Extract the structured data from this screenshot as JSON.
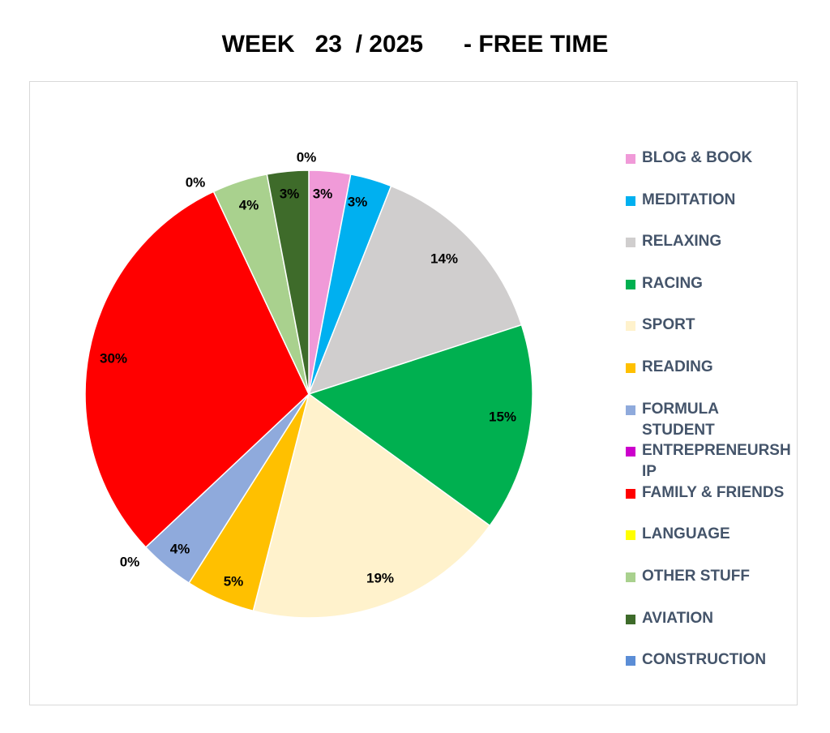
{
  "chart_data": {
    "type": "pie",
    "title": "WEEK   23  / 2025      - FREE TIME",
    "legend_position": "right",
    "slices": [
      {
        "label": "BLOG & BOOK",
        "value": 3,
        "display": "3%",
        "color": "#f09ad8"
      },
      {
        "label": "MEDITATION",
        "value": 3,
        "display": "3%",
        "color": "#00b0f0"
      },
      {
        "label": "RELAXING",
        "value": 14,
        "display": "14%",
        "color": "#d0cece"
      },
      {
        "label": "RACING",
        "value": 15,
        "display": "15%",
        "color": "#00b050"
      },
      {
        "label": "SPORT",
        "value": 19,
        "display": "19%",
        "color": "#fff2cc"
      },
      {
        "label": "READING",
        "value": 5,
        "display": "5%",
        "color": "#ffc000"
      },
      {
        "label": "FORMULA STUDENT",
        "value": 4,
        "display": "4%",
        "color": "#8faadc"
      },
      {
        "label": "ENTREPRENEURSHIP",
        "value": 0,
        "display": "0%",
        "color": "#cc00cc"
      },
      {
        "label": "FAMILY & FRIENDS",
        "value": 30,
        "display": "30%",
        "color": "#ff0000"
      },
      {
        "label": "LANGUAGE",
        "value": 0,
        "display": "0%",
        "color": "#ffff00"
      },
      {
        "label": "OTHER STUFF",
        "value": 4,
        "display": "4%",
        "color": "#a9d18e"
      },
      {
        "label": "AVIATION",
        "value": 3,
        "display": "3%",
        "color": "#3e6b2a"
      },
      {
        "label": "CONSTRUCTION",
        "value": 0,
        "display": "0%",
        "color": "#5b8dd6"
      }
    ],
    "legend_lines": [
      [
        "BLOG & BOOK"
      ],
      [
        "MEDITATION"
      ],
      [
        "RELAXING"
      ],
      [
        "RACING"
      ],
      [
        "SPORT"
      ],
      [
        "READING"
      ],
      [
        "FORMULA",
        "STUDENT"
      ],
      [
        "ENTREPRENEURSH",
        "IP"
      ],
      [
        "FAMILY & FRIENDS"
      ],
      [
        "LANGUAGE"
      ],
      [
        "OTHER STUFF"
      ],
      [
        "AVIATION"
      ],
      [
        "CONSTRUCTION"
      ]
    ]
  }
}
